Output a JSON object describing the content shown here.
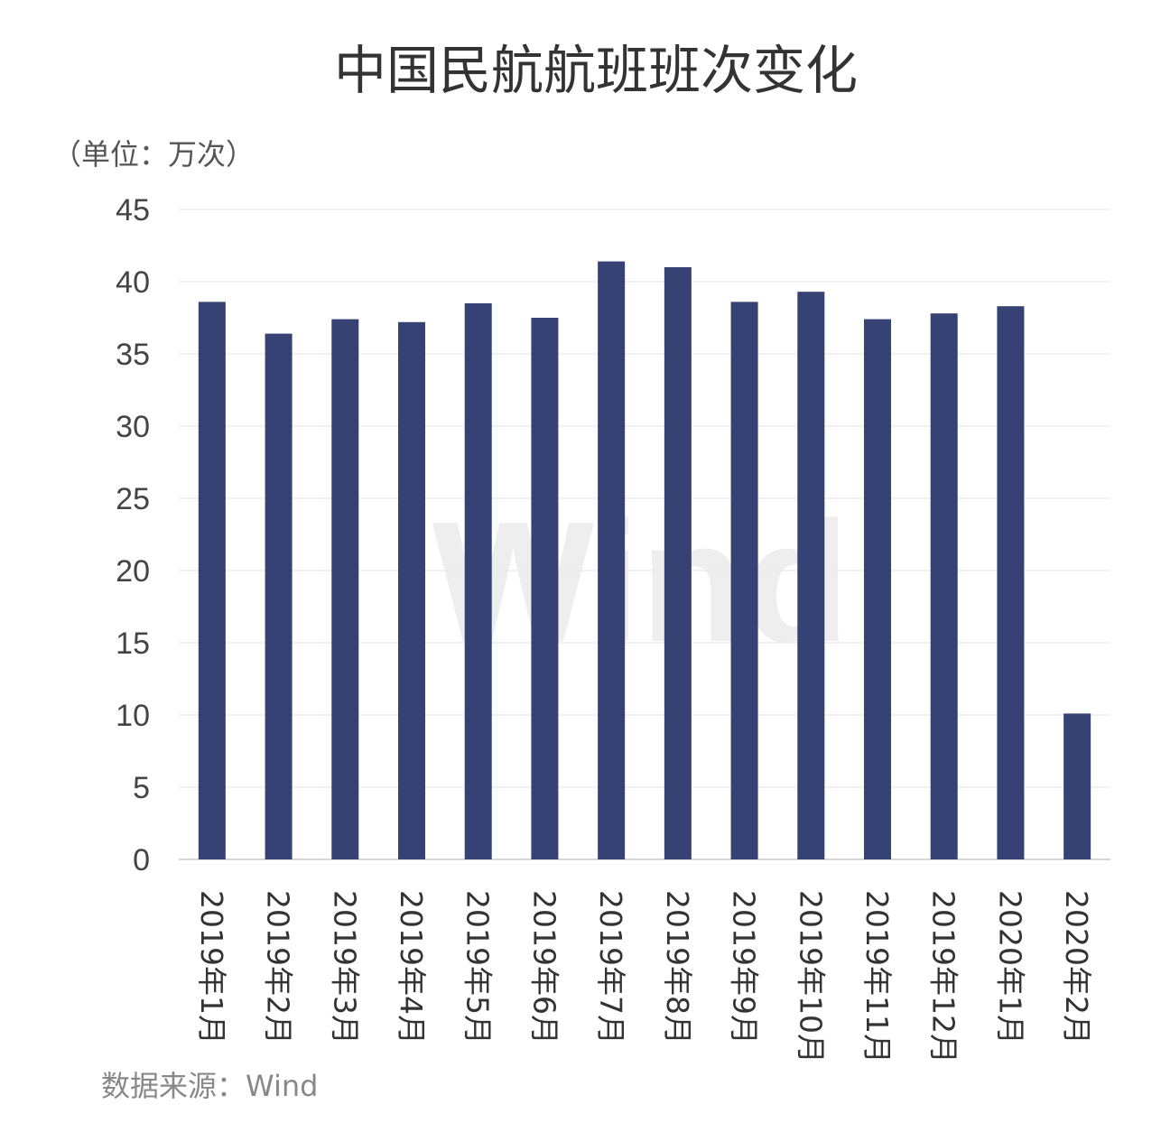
{
  "chart_data": {
    "type": "bar",
    "title": "中国民航航班班次变化",
    "unit_label": "（单位：万次）",
    "source": "数据来源：Wind",
    "watermark": "Wind",
    "categories": [
      "2019年1月",
      "2019年2月",
      "2019年3月",
      "2019年4月",
      "2019年5月",
      "2019年6月",
      "2019年7月",
      "2019年8月",
      "2019年9月",
      "2019年10月",
      "2019年11月",
      "2019年12月",
      "2020年1月",
      "2020年2月"
    ],
    "values": [
      38.6,
      36.4,
      37.4,
      37.2,
      38.5,
      37.5,
      41.4,
      41.0,
      38.6,
      39.3,
      37.4,
      37.8,
      38.3,
      10.1
    ],
    "yticks": [
      "0",
      "5",
      "10",
      "15",
      "20",
      "25",
      "30",
      "35",
      "40",
      "45"
    ],
    "ylim": [
      0,
      45
    ],
    "grid": true,
    "bar_color": "#364174"
  }
}
